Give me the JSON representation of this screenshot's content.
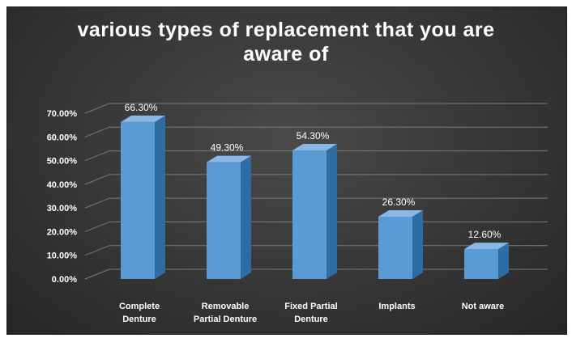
{
  "chart_data": {
    "type": "bar",
    "title_lines": [
      "various types of replacement that you are",
      "aware of"
    ],
    "categories": [
      [
        "Complete",
        "Denture"
      ],
      [
        "Removable",
        "Partial Denture"
      ],
      [
        "Fixed Partial",
        "Denture"
      ],
      [
        "Implants"
      ],
      [
        "Not aware"
      ]
    ],
    "values": [
      66.3,
      49.3,
      54.3,
      26.3,
      12.6
    ],
    "value_labels": [
      "66.30%",
      "49.30%",
      "54.30%",
      "26.30%",
      "12.60%"
    ],
    "yticks": [
      "0.00%",
      "10.00%",
      "20.00%",
      "30.00%",
      "40.00%",
      "50.00%",
      "60.00%",
      "70.00%"
    ],
    "ylim": [
      0,
      70
    ],
    "grid": true,
    "style": "3d-column",
    "colors": {
      "background": "#3a3a3a",
      "bar_front": "#5b9bd5",
      "bar_side": "#2e6da4",
      "bar_top": "#8ab8e6",
      "grid": "#7a7a7a",
      "text": "#ffffff"
    }
  }
}
